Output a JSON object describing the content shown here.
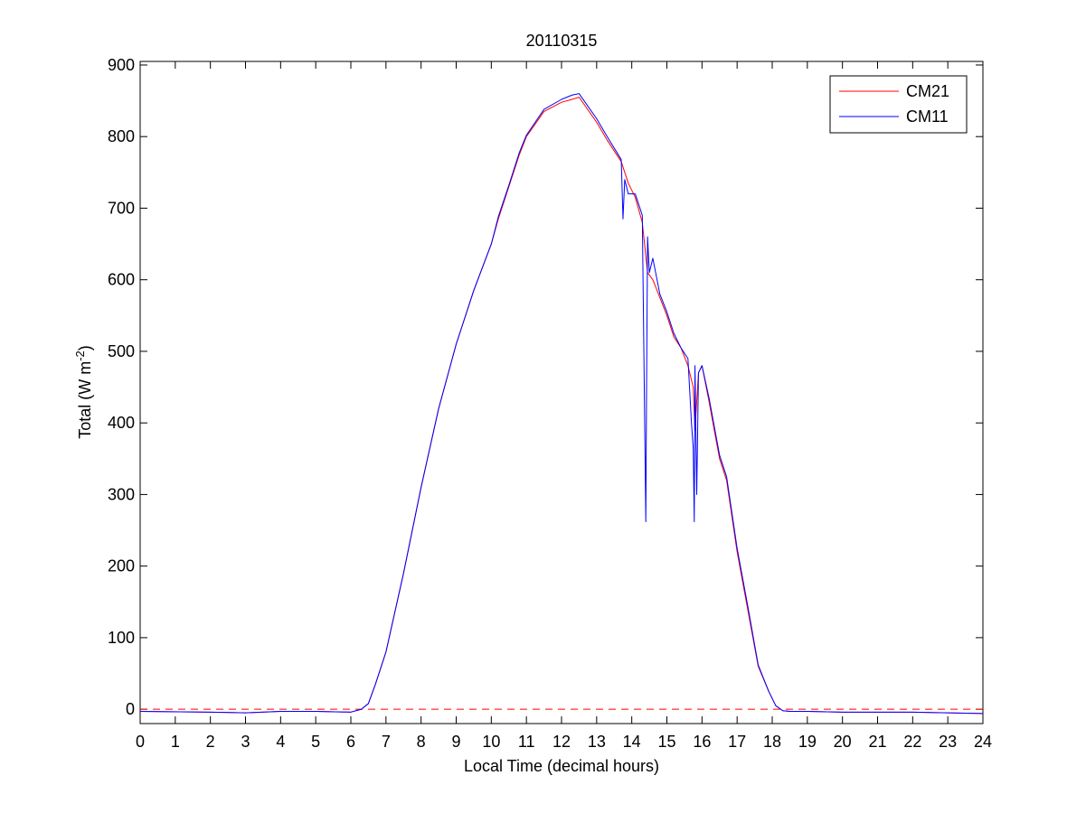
{
  "chart_data": {
    "type": "line",
    "title": "20110315",
    "xlabel": "Local Time (decimal hours)",
    "ylabel_main": "Total (W m",
    "ylabel_sup": "-2",
    "ylabel_close": ")",
    "xlim": [
      0,
      24
    ],
    "ylim": [
      -20,
      905
    ],
    "xticks": [
      "0",
      "1",
      "2",
      "3",
      "4",
      "5",
      "6",
      "7",
      "8",
      "9",
      "10",
      "11",
      "12",
      "13",
      "14",
      "15",
      "16",
      "17",
      "18",
      "19",
      "20",
      "21",
      "22",
      "23",
      "24"
    ],
    "yticks": [
      "0",
      "100",
      "200",
      "300",
      "400",
      "500",
      "600",
      "700",
      "800",
      "900"
    ],
    "grid": false,
    "legend_position": "top-right",
    "reference_line": {
      "y": 0,
      "style": "dashed",
      "color": "#ff0000"
    },
    "series": [
      {
        "name": "CM21",
        "color": "#ff0000",
        "x": [
          0,
          2,
          3,
          4,
          5,
          6,
          6.3,
          6.5,
          6.7,
          7,
          7.5,
          8,
          8.5,
          9,
          9.5,
          10,
          10.2,
          10.5,
          10.8,
          11,
          11.5,
          12,
          12.3,
          12.5,
          13,
          13.3,
          13.7,
          13.9,
          14.1,
          14.3,
          14.45,
          14.6,
          14.8,
          15,
          15.2,
          15.4,
          15.6,
          15.75,
          15.8,
          15.9,
          16,
          16.2,
          16.5,
          16.7,
          17,
          17.3,
          17.6,
          17.9,
          18.1,
          18.3,
          18.5,
          19,
          20,
          21,
          22,
          23,
          24
        ],
        "y": [
          -3,
          -4,
          -5,
          -3,
          -3,
          -4,
          0,
          8,
          35,
          80,
          190,
          310,
          420,
          510,
          585,
          650,
          685,
          730,
          775,
          800,
          835,
          848,
          852,
          855,
          820,
          795,
          765,
          735,
          715,
          680,
          610,
          600,
          575,
          550,
          520,
          505,
          480,
          450,
          390,
          470,
          480,
          430,
          350,
          320,
          220,
          140,
          60,
          25,
          5,
          -2,
          -3,
          -3,
          -4,
          -4,
          -4,
          -5,
          -6
        ]
      },
      {
        "name": "CM11",
        "color": "#0000ff",
        "x": [
          0,
          2,
          3,
          4,
          5,
          6,
          6.3,
          6.5,
          6.7,
          7,
          7.5,
          8,
          8.5,
          9,
          9.5,
          10,
          10.2,
          10.5,
          10.8,
          11,
          11.5,
          12,
          12.3,
          12.5,
          13,
          13.3,
          13.7,
          13.75,
          13.8,
          13.9,
          14.1,
          14.3,
          14.4,
          14.42,
          14.45,
          14.5,
          14.6,
          14.8,
          15,
          15.2,
          15.4,
          15.6,
          15.7,
          15.75,
          15.78,
          15.8,
          15.85,
          15.9,
          16,
          16.2,
          16.5,
          16.7,
          17,
          17.3,
          17.6,
          17.9,
          18.1,
          18.3,
          18.5,
          19,
          20,
          21,
          22,
          23,
          24
        ],
        "y": [
          -3,
          -4,
          -5,
          -3,
          -3,
          -4,
          0,
          8,
          35,
          80,
          190,
          310,
          420,
          510,
          585,
          650,
          688,
          732,
          778,
          802,
          838,
          852,
          858,
          860,
          825,
          800,
          768,
          685,
          740,
          720,
          720,
          690,
          262,
          440,
          660,
          610,
          630,
          580,
          555,
          525,
          505,
          490,
          400,
          365,
          262,
          480,
          300,
          470,
          480,
          435,
          355,
          325,
          225,
          145,
          62,
          25,
          5,
          -2,
          -3,
          -3,
          -4,
          -4,
          -4,
          -5,
          -6
        ]
      }
    ]
  }
}
